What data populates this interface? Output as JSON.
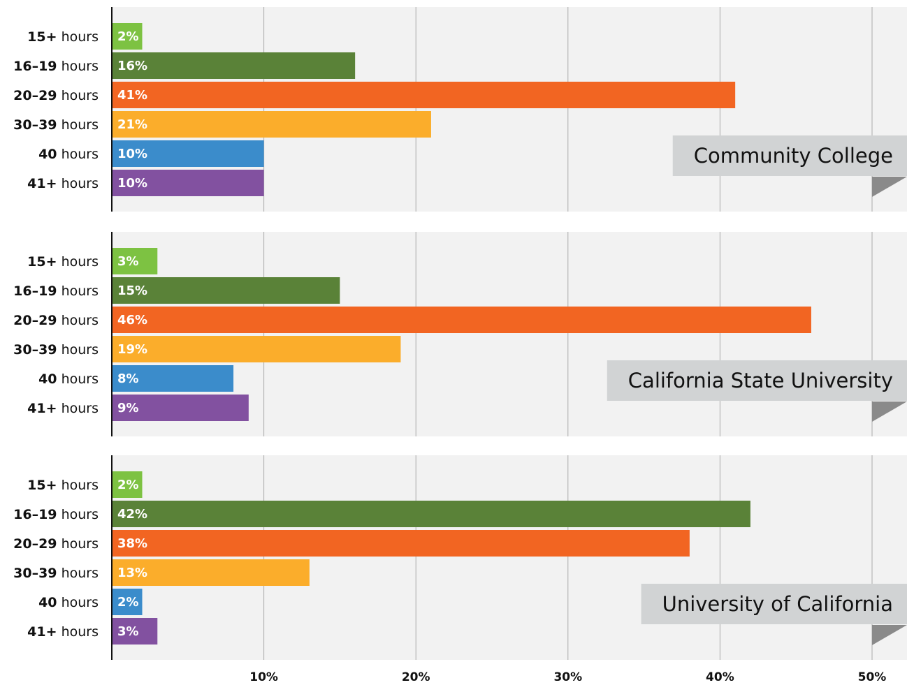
{
  "chart_data": [
    {
      "type": "bar",
      "title": "Community College",
      "categories": [
        "15+ hours",
        "16–19 hours",
        "20–29 hours",
        "30–39 hours",
        "40 hours",
        "41+ hours"
      ],
      "values": [
        2,
        16,
        41,
        21,
        10,
        10
      ],
      "value_labels": [
        "2%",
        "16%",
        "41%",
        "21%",
        "10%",
        "10%"
      ],
      "colors": [
        "#7dc242",
        "#5a8238",
        "#f26522",
        "#fbad2b",
        "#3b8ccb",
        "#8251a0"
      ],
      "xlim": [
        0,
        50
      ],
      "grid": true
    },
    {
      "type": "bar",
      "title": "California State University",
      "categories": [
        "15+ hours",
        "16–19 hours",
        "20–29 hours",
        "30–39 hours",
        "40 hours",
        "41+ hours"
      ],
      "values": [
        3,
        15,
        46,
        19,
        8,
        9
      ],
      "value_labels": [
        "3%",
        "15%",
        "46%",
        "19%",
        "8%",
        "9%"
      ],
      "colors": [
        "#7dc242",
        "#5a8238",
        "#f26522",
        "#fbad2b",
        "#3b8ccb",
        "#8251a0"
      ],
      "xlim": [
        0,
        50
      ],
      "grid": true
    },
    {
      "type": "bar",
      "title": "University of California",
      "categories": [
        "15+ hours",
        "16–19 hours",
        "20–29 hours",
        "30–39 hours",
        "40 hours",
        "41+ hours"
      ],
      "values": [
        2,
        42,
        38,
        13,
        2,
        3
      ],
      "value_labels": [
        "2%",
        "42%",
        "38%",
        "13%",
        "2%",
        "3%"
      ],
      "colors": [
        "#7dc242",
        "#5a8238",
        "#f26522",
        "#fbad2b",
        "#3b8ccb",
        "#8251a0"
      ],
      "xlim": [
        0,
        50
      ],
      "grid": true,
      "xticks": [
        {
          "value": 10,
          "label": "10%"
        },
        {
          "value": 20,
          "label": "20%"
        },
        {
          "value": 30,
          "label": "30%"
        },
        {
          "value": 40,
          "label": "40%"
        },
        {
          "value": 50,
          "label": "50%"
        }
      ]
    }
  ]
}
